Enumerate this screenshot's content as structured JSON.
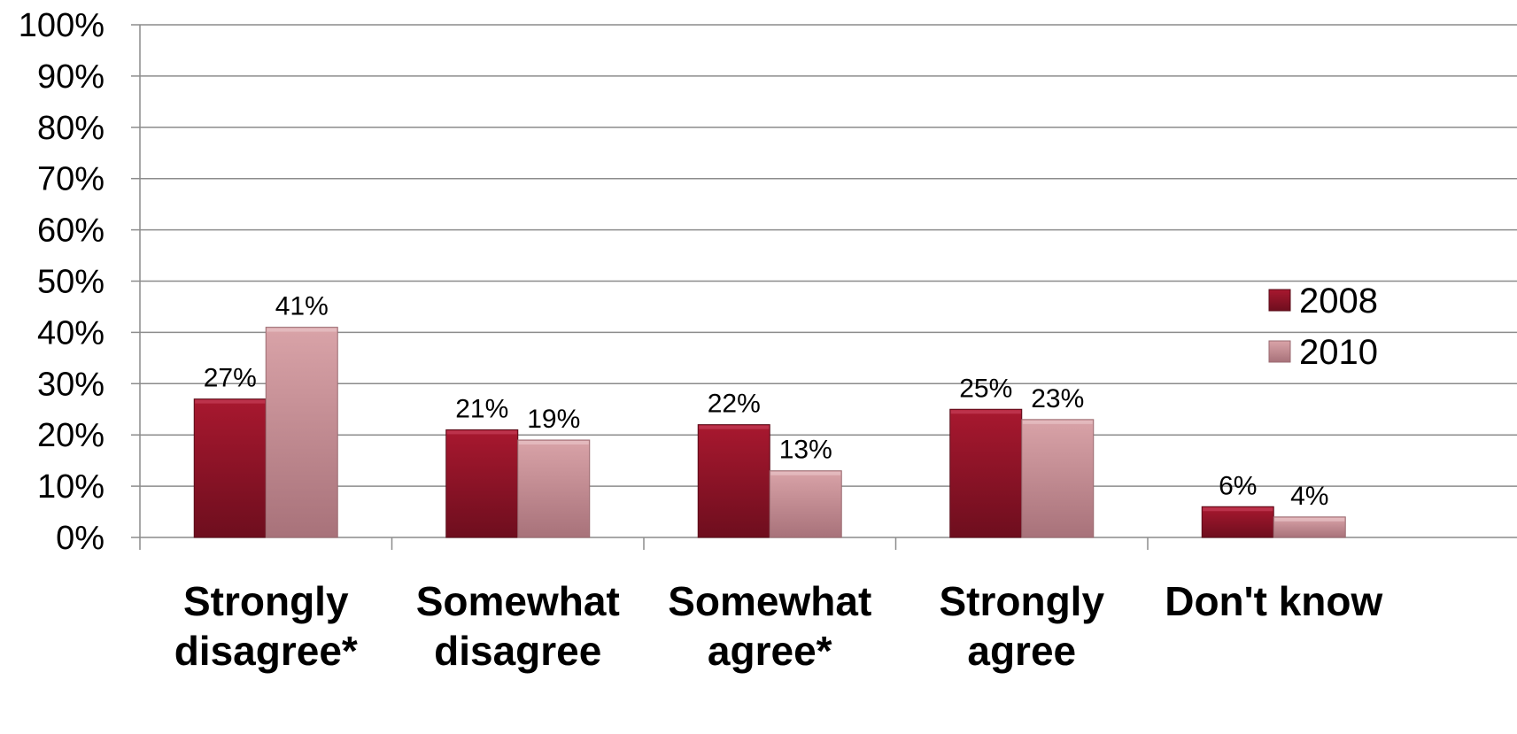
{
  "chart_data": {
    "type": "bar",
    "title": "",
    "xlabel": "",
    "ylabel": "",
    "ylim": [
      0,
      100
    ],
    "yticks": [
      "0%",
      "10%",
      "20%",
      "30%",
      "40%",
      "50%",
      "60%",
      "70%",
      "80%",
      "90%",
      "100%"
    ],
    "grid": true,
    "legend_position": "right",
    "categories": [
      [
        "Strongly",
        "disagree*"
      ],
      [
        "Somewhat",
        "disagree"
      ],
      [
        "Somewhat",
        "agree*"
      ],
      [
        "Strongly",
        "agree"
      ],
      [
        "Don't know"
      ]
    ],
    "series": [
      {
        "name": "2008",
        "values": [
          27,
          21,
          22,
          25,
          6
        ],
        "labels": [
          "27%",
          "21%",
          "22%",
          "25%",
          "6%"
        ],
        "color": "#8e1429"
      },
      {
        "name": "2010",
        "values": [
          41,
          19,
          13,
          23,
          4
        ],
        "labels": [
          "41%",
          "19%",
          "13%",
          "23%",
          "4%"
        ],
        "color": "#c98f95"
      }
    ]
  }
}
